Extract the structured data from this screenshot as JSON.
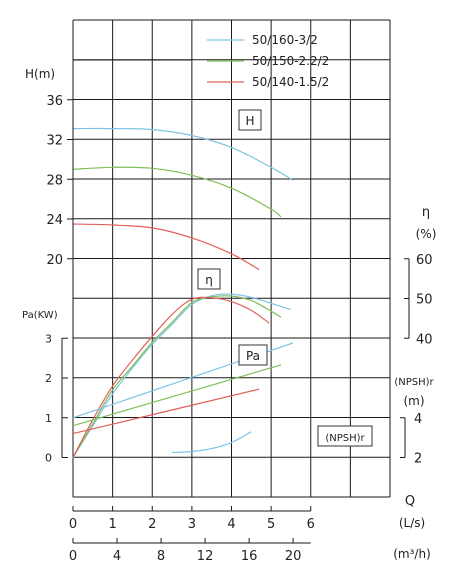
{
  "chart_data": {
    "type": "line",
    "legend": {
      "placement": "top-right",
      "entries": [
        {
          "name": "50/160-3/2",
          "color": "#7fc4e6"
        },
        {
          "name": "50/150-2.2/2",
          "color": "#7fbf5a"
        },
        {
          "name": "50/140-1.5/2",
          "color": "#e0605a"
        }
      ]
    },
    "x_axis": {
      "name": "Q",
      "ls_unit": "(L/s)",
      "ls_range": [
        0,
        6
      ],
      "ls_ticks": [
        "0",
        "1",
        "2",
        "3",
        "4",
        "5",
        "6"
      ],
      "m3h_unit": "(m³/h)",
      "m3h_range": [
        0,
        21.6
      ],
      "m3h_ticks": [
        "0",
        "4",
        "8",
        "12",
        "16",
        "20"
      ]
    },
    "axes": {
      "H": {
        "label": "H(m)",
        "range": [
          20,
          36
        ],
        "ticks": [
          "20",
          "24",
          "28",
          "32",
          "36"
        ]
      },
      "eta": {
        "label_line1": "η",
        "label_line2": "(%)",
        "range": [
          40,
          60
        ],
        "ticks": [
          "40",
          "50",
          "60"
        ]
      },
      "Pa": {
        "label": "Pa(KW)",
        "range": [
          0,
          3
        ],
        "ticks": [
          "0",
          "1",
          "2",
          "3"
        ]
      },
      "NPSH": {
        "label_line1": "(NPSH)r",
        "label_line2": "(m)",
        "range": [
          2,
          4
        ],
        "ticks": [
          "2",
          "4"
        ]
      }
    },
    "curve_labels": {
      "H": "H",
      "eta": "η",
      "Pa": "Pa",
      "NPSH": "(NPSH)r"
    },
    "grid": true,
    "series": [
      {
        "name": "50/160-3/2",
        "curve": "H",
        "x": [
          0,
          1,
          2,
          3,
          4,
          5,
          5.55
        ],
        "y": [
          33.1,
          33.1,
          33.0,
          32.4,
          31.2,
          29.2,
          27.9
        ]
      },
      {
        "name": "50/150-2.2/2",
        "curve": "H",
        "x": [
          0,
          1,
          2,
          3,
          4,
          5,
          5.25
        ],
        "y": [
          29.0,
          29.2,
          29.1,
          28.4,
          27.1,
          25.0,
          24.2
        ]
      },
      {
        "name": "50/140-1.5/2",
        "curve": "H",
        "x": [
          0,
          1,
          2,
          3,
          4,
          4.7
        ],
        "y": [
          23.5,
          23.4,
          23.1,
          22.1,
          20.5,
          18.9
        ]
      },
      {
        "name": "50/160-3/2",
        "curve": "eta",
        "x": [
          0,
          0.5,
          1,
          1.5,
          2,
          2.5,
          3,
          3.5,
          4,
          4.5,
          5,
          5.5
        ],
        "y": [
          10,
          18,
          26,
          32.5,
          38.5,
          43.5,
          48.5,
          50.7,
          51.1,
          50.3,
          48.8,
          47.2
        ]
      },
      {
        "name": "50/150-2.2/2",
        "curve": "eta",
        "x": [
          0,
          0.5,
          1,
          1.5,
          2,
          2.5,
          3,
          3.5,
          4,
          4.5,
          5,
          5.25
        ],
        "y": [
          10,
          18.5,
          27,
          33,
          39,
          44,
          49,
          50.4,
          50.6,
          49.5,
          46.8,
          45.3
        ]
      },
      {
        "name": "50/140-1.5/2",
        "curve": "eta",
        "x": [
          0,
          0.5,
          1,
          1.5,
          2,
          2.5,
          3,
          3.5,
          4,
          4.5,
          4.95
        ],
        "y": [
          10,
          19.5,
          28,
          34.5,
          40.5,
          46,
          49.8,
          50.2,
          49.2,
          47.0,
          43.8
        ]
      },
      {
        "name": "50/160-3/2",
        "curve": "Pa",
        "x": [
          0,
          5.55
        ],
        "y": [
          1.0,
          2.88
        ]
      },
      {
        "name": "50/150-2.2/2",
        "curve": "Pa",
        "x": [
          0,
          5.25
        ],
        "y": [
          0.8,
          2.33
        ]
      },
      {
        "name": "50/140-1.5/2",
        "curve": "Pa",
        "x": [
          0,
          4.7
        ],
        "y": [
          0.6,
          1.72
        ]
      },
      {
        "name": "50/160-3/2",
        "curve": "NPSH",
        "x": [
          2.5,
          3,
          3.5,
          4,
          4.5
        ],
        "y": [
          2.25,
          2.3,
          2.45,
          2.75,
          3.3
        ]
      }
    ]
  }
}
